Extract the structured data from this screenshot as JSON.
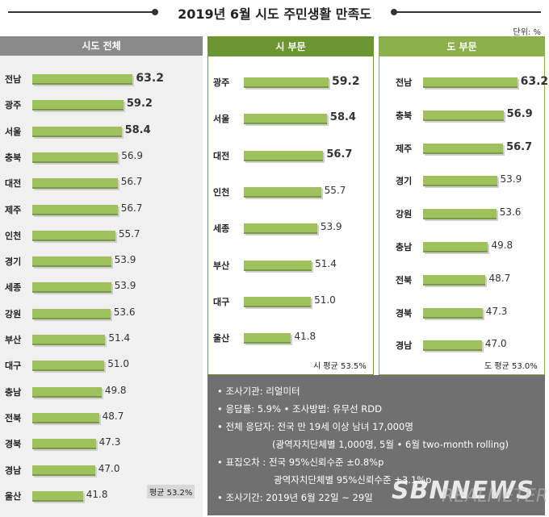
{
  "title": "2019년 6월 시도 주민생활 만족도",
  "unit": "단위: %",
  "colors": {
    "bar": "#9ec15e",
    "head_all": "#8a8a8a",
    "head_city": "#6c9632",
    "head_prov": "#8bb04c"
  },
  "chart_data": [
    {
      "type": "bar",
      "title": "시도 전체",
      "categories": [
        "전남",
        "광주",
        "서울",
        "충북",
        "대전",
        "제주",
        "인천",
        "경기",
        "세종",
        "강원",
        "부산",
        "대구",
        "충남",
        "전북",
        "경북",
        "경남",
        "울산"
      ],
      "values": [
        63.2,
        59.2,
        58.4,
        56.9,
        56.7,
        56.7,
        55.7,
        53.9,
        53.9,
        53.6,
        51.4,
        51.0,
        49.8,
        48.7,
        47.3,
        47.0,
        41.8
      ],
      "value_labels": [
        "63.2",
        "59.2",
        "58.4",
        "56.9",
        "56.7",
        "56.7",
        "55.7",
        "53.9",
        "53.9",
        "53.6",
        "51.4",
        "51.0",
        "49.8",
        "48.7",
        "47.3",
        "47.0",
        "41.8"
      ],
      "average_label": "평균 53.2%"
    },
    {
      "type": "bar",
      "title": "시 부문",
      "categories": [
        "광주",
        "서울",
        "대전",
        "인천",
        "세종",
        "부산",
        "대구",
        "울산"
      ],
      "values": [
        59.2,
        58.4,
        56.7,
        55.7,
        53.9,
        51.4,
        51.0,
        41.8
      ],
      "value_labels": [
        "59.2",
        "58.4",
        "56.7",
        "55.7",
        "53.9",
        "51.4",
        "51.0",
        "41.8"
      ],
      "average_label": "시 평균 53.5%"
    },
    {
      "type": "bar",
      "title": "도 부문",
      "categories": [
        "전남",
        "충북",
        "제주",
        "경기",
        "강원",
        "충남",
        "전북",
        "경북",
        "경남"
      ],
      "values": [
        63.2,
        56.9,
        56.7,
        53.9,
        53.6,
        49.8,
        48.7,
        47.3,
        47.0
      ],
      "value_labels": [
        "63.2",
        "56.9",
        "56.7",
        "53.9",
        "53.6",
        "49.8",
        "48.7",
        "47.3",
        "47.0"
      ],
      "average_label": "도 평균 53.0%"
    }
  ],
  "info": {
    "lines": [
      "• 조사기관: 리얼미터",
      "• 응답률: 5.9% • 조사방법: 유무선 RDD",
      "• 전체 응답자: 전국 만 19세 이상 남녀 17,000명",
      "(광역자치단체별 1,000명, 5월 • 6월 two-month rolling)",
      "• 표집오차 : 전국 95%신뢰수준 ±0.8%p",
      "광역자치단체별 95%신뢰수준 ±3.1%p",
      "• 조사기간: 2019년 6월 22일 ~ 29일"
    ]
  },
  "watermark": "SBNNEWS",
  "watermark_logo": "REALMETER"
}
